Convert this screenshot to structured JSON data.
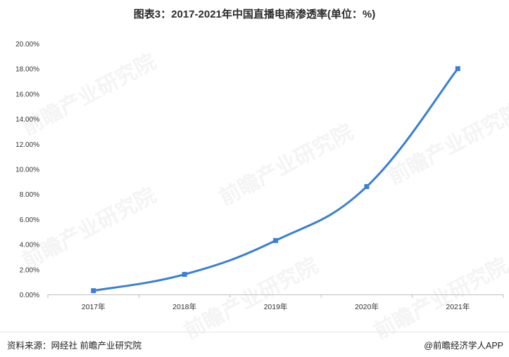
{
  "title": "图表3：2017-2021年中国直播电商渗透率(单位：%)",
  "watermark": "前瞻产业研究院",
  "source": "资料来源：网经社 前瞻产业研究院",
  "credit": "@前瞻经济学人APP",
  "colors": {
    "line": "#3a7fd5",
    "axis": "#bfbfbf",
    "text": "#333333"
  },
  "chart_data": {
    "type": "line",
    "categories": [
      "2017年",
      "2018年",
      "2019年",
      "2020年",
      "2021年"
    ],
    "series": [
      {
        "values": [
          0.3,
          1.6,
          4.3,
          8.6,
          18.0
        ]
      }
    ],
    "yticks": [
      "0.00%",
      "2.00%",
      "4.00%",
      "6.00%",
      "8.00%",
      "10.00%",
      "12.00%",
      "14.00%",
      "16.00%",
      "18.00%",
      "20.00%"
    ],
    "ylim": [
      0,
      20
    ],
    "grid": false,
    "legend": "none",
    "smooth": true,
    "marker": "square"
  }
}
